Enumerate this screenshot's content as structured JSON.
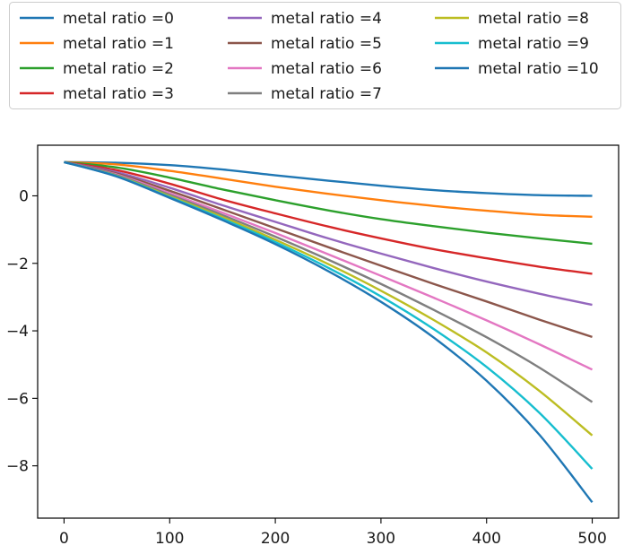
{
  "chart_data": {
    "type": "line",
    "title": "",
    "xlabel": "",
    "ylabel": "",
    "xlim": [
      -25,
      525
    ],
    "ylim": [
      -9.55,
      1.5
    ],
    "x_ticks": [
      0,
      100,
      200,
      300,
      400,
      500
    ],
    "y_ticks": [
      0,
      -2,
      -4,
      -6,
      -8
    ],
    "x_tick_labels": [
      "0",
      "100",
      "200",
      "300",
      "400",
      "500"
    ],
    "y_tick_labels": [
      "0",
      "−2",
      "−4",
      "−6",
      "−8"
    ],
    "grid": false,
    "legend": {
      "placement": "top-outside",
      "columns": 3
    },
    "series": [
      {
        "name": "metal ratio =0",
        "color": "#1f77b4",
        "x": [
          0,
          50,
          100,
          150,
          200,
          250,
          300,
          350,
          400,
          450,
          500
        ],
        "y": [
          1.0,
          0.98,
          0.91,
          0.78,
          0.61,
          0.45,
          0.3,
          0.17,
          0.08,
          0.02,
          0.0
        ]
      },
      {
        "name": "metal ratio =1",
        "color": "#ff7f0e",
        "x": [
          0,
          50,
          100,
          150,
          200,
          250,
          300,
          350,
          400,
          450,
          500
        ],
        "y": [
          1.0,
          0.93,
          0.74,
          0.51,
          0.27,
          0.06,
          -0.13,
          -0.3,
          -0.44,
          -0.56,
          -0.62
        ]
      },
      {
        "name": "metal ratio =2",
        "color": "#2ca02c",
        "x": [
          0,
          50,
          100,
          150,
          200,
          250,
          300,
          350,
          400,
          450,
          500
        ],
        "y": [
          1.0,
          0.84,
          0.54,
          0.19,
          -0.13,
          -0.43,
          -0.69,
          -0.9,
          -1.09,
          -1.26,
          -1.42
        ]
      },
      {
        "name": "metal ratio =3",
        "color": "#d62728",
        "x": [
          0,
          50,
          100,
          150,
          200,
          250,
          300,
          350,
          400,
          450,
          500
        ],
        "y": [
          1.0,
          0.76,
          0.36,
          -0.11,
          -0.52,
          -0.91,
          -1.26,
          -1.58,
          -1.85,
          -2.1,
          -2.31
        ]
      },
      {
        "name": "metal ratio =4",
        "color": "#9467bd",
        "x": [
          0,
          50,
          100,
          150,
          200,
          250,
          300,
          350,
          400,
          450,
          500
        ],
        "y": [
          1.0,
          0.7,
          0.24,
          -0.28,
          -0.77,
          -1.26,
          -1.71,
          -2.14,
          -2.54,
          -2.9,
          -3.23
        ]
      },
      {
        "name": "metal ratio =5",
        "color": "#8c564b",
        "x": [
          0,
          50,
          100,
          150,
          200,
          250,
          300,
          350,
          400,
          450,
          500
        ],
        "y": [
          1.0,
          0.66,
          0.15,
          -0.4,
          -0.96,
          -1.52,
          -2.07,
          -2.61,
          -3.13,
          -3.67,
          -4.18
        ]
      },
      {
        "name": "metal ratio =6",
        "color": "#e377c2",
        "x": [
          0,
          50,
          100,
          150,
          200,
          250,
          300,
          350,
          400,
          450,
          500
        ],
        "y": [
          1.0,
          0.63,
          0.08,
          -0.5,
          -1.1,
          -1.73,
          -2.37,
          -3.02,
          -3.69,
          -4.4,
          -5.15
        ]
      },
      {
        "name": "metal ratio =7",
        "color": "#7f7f7f",
        "x": [
          0,
          50,
          100,
          150,
          200,
          250,
          300,
          350,
          400,
          450,
          500
        ],
        "y": [
          1.0,
          0.61,
          0.03,
          -0.57,
          -1.21,
          -1.89,
          -2.61,
          -3.38,
          -4.19,
          -5.09,
          -6.11
        ]
      },
      {
        "name": "metal ratio =8",
        "color": "#bcbd22",
        "x": [
          0,
          50,
          100,
          150,
          200,
          250,
          300,
          350,
          400,
          450,
          500
        ],
        "y": [
          1.0,
          0.59,
          -0.01,
          -0.63,
          -1.3,
          -2.02,
          -2.81,
          -3.68,
          -4.64,
          -5.78,
          -7.1
        ]
      },
      {
        "name": "metal ratio =9",
        "color": "#17becf",
        "x": [
          0,
          50,
          100,
          150,
          200,
          250,
          300,
          350,
          400,
          450,
          500
        ],
        "y": [
          1.0,
          0.58,
          -0.04,
          -0.68,
          -1.37,
          -2.13,
          -2.98,
          -3.95,
          -5.07,
          -6.43,
          -8.09
        ]
      },
      {
        "name": "metal ratio =10",
        "color": "#1f77b4",
        "x": [
          0,
          50,
          100,
          150,
          200,
          250,
          300,
          350,
          400,
          450,
          500
        ],
        "y": [
          1.0,
          0.57,
          -0.06,
          -0.72,
          -1.43,
          -2.23,
          -3.14,
          -4.2,
          -5.48,
          -7.08,
          -9.08
        ]
      }
    ]
  }
}
